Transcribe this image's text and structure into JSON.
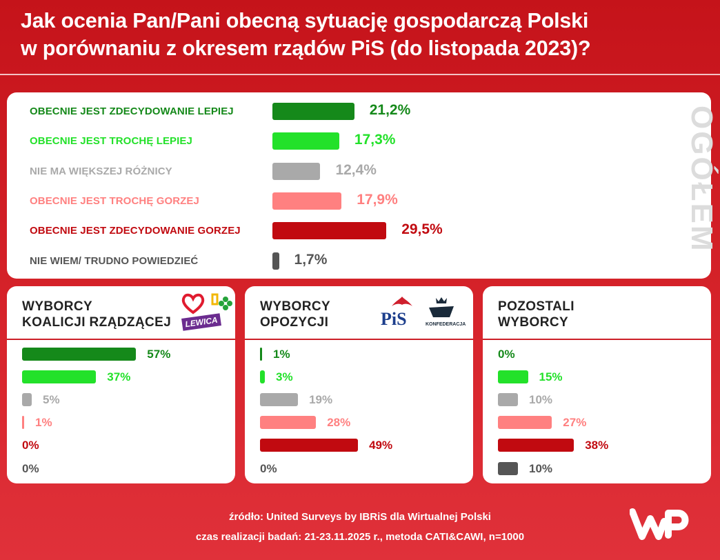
{
  "title": {
    "line1": "Jak ocenia Pan/Pani obecną sytuację gospodarczą Polski",
    "line2": "w porównaniu z okresem rządów PiS (do listopada 2023)?"
  },
  "colors": {
    "zdecydowanie_lepiej": "#15891a",
    "troche_lepiej": "#23e12a",
    "bez_roznicy": "#a9a9a9",
    "troche_gorzej": "#ff8080",
    "zdecydowanie_gorzej": "#c10a10",
    "nie_wiem": "#555555",
    "brand_red": "#d41f26"
  },
  "chart_data": [
    {
      "type": "bar",
      "orientation": "horizontal",
      "panel_label": "OGÓŁEM",
      "categories": [
        "OBECNIE JEST ZDECYDOWANIE LEPIEJ",
        "OBECNIE JEST TROCHĘ LEPIEJ",
        "NIE MA WIĘKSZEJ RÓŻNICY",
        "OBECNIE JEST TROCHĘ GORZEJ",
        "OBECNIE JEST ZDECYDOWANIE GORZEJ",
        "NIE WIEM/ TRUDNO POWIEDZIEĆ"
      ],
      "values": [
        21.2,
        17.3,
        12.4,
        17.9,
        29.5,
        1.7
      ],
      "value_labels": [
        "21,2%",
        "17,3%",
        "12,4%",
        "17,9%",
        "29,5%",
        "1,7%"
      ],
      "unit": "%",
      "grid": false
    },
    {
      "type": "bar",
      "orientation": "horizontal",
      "panel_label": "WYBORCY\nKOALICJI RZĄDZĄCEJ",
      "values": [
        57,
        37,
        5,
        1,
        0,
        0
      ],
      "value_labels": [
        "57%",
        "37%",
        "5%",
        "1%",
        "0%",
        "0%"
      ],
      "unit": "%",
      "grid": false
    },
    {
      "type": "bar",
      "orientation": "horizontal",
      "panel_label": "WYBORCY\nOPOZYCJI",
      "values": [
        1,
        3,
        19,
        28,
        49,
        0
      ],
      "value_labels": [
        "1%",
        "3%",
        "19%",
        "28%",
        "49%",
        "0%"
      ],
      "unit": "%",
      "grid": false
    },
    {
      "type": "bar",
      "orientation": "horizontal",
      "panel_label": "POZOSTALI\nWYBORCY",
      "values": [
        0,
        15,
        10,
        27,
        38,
        10
      ],
      "value_labels": [
        "0%",
        "15%",
        "10%",
        "27%",
        "38%",
        "10%"
      ],
      "unit": "%",
      "grid": false
    }
  ],
  "logos": {
    "lewica": "LEWICA",
    "pis": "PiS",
    "konfederacja": "KONFEDERACJA"
  },
  "footer": {
    "source": "źródło: United Surveys by IBRiS dla Wirtualnej Polski",
    "method": "czas realizacji badań: 21-23.11.2025 r., metoda CATI&CAWI, n=1000",
    "brand": "WP"
  }
}
